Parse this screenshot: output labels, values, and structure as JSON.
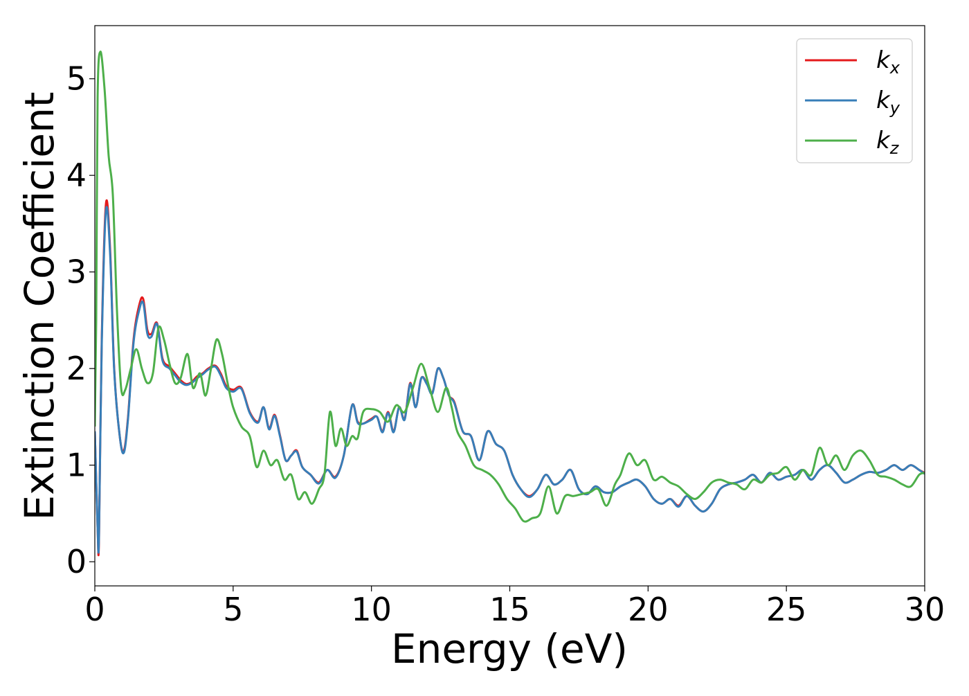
{
  "chart_data": {
    "type": "line",
    "xlabel": "Energy (eV)",
    "ylabel": "Extinction Coefficient",
    "xlim": [
      0,
      30
    ],
    "ylim": [
      -0.25,
      5.55
    ],
    "xticks": [
      0,
      5,
      10,
      15,
      20,
      25,
      30
    ],
    "yticks": [
      0,
      1,
      2,
      3,
      4,
      5
    ],
    "grid": false,
    "legend_position": "top-right",
    "series": [
      {
        "name": "kx",
        "base": "k",
        "sub": "x",
        "color": "#e41a1c",
        "x": [
          0,
          0.1,
          0.15,
          0.25,
          0.4,
          0.55,
          0.7,
          0.9,
          1.05,
          1.2,
          1.4,
          1.6,
          1.75,
          1.9,
          2.05,
          2.25,
          2.45,
          2.7,
          2.9,
          3.1,
          3.3,
          3.5,
          3.7,
          3.9,
          4.1,
          4.35,
          4.55,
          4.75,
          5,
          5.3,
          5.6,
          5.9,
          6.1,
          6.3,
          6.5,
          6.7,
          6.9,
          7.1,
          7.3,
          7.5,
          7.8,
          8.1,
          8.4,
          8.7,
          9.0,
          9.3,
          9.5,
          9.7,
          10.0,
          10.2,
          10.4,
          10.6,
          10.8,
          11.0,
          11.2,
          11.4,
          11.6,
          11.8,
          12.0,
          12.2,
          12.4,
          12.6,
          12.8,
          13.0,
          13.3,
          13.6,
          13.9,
          14.2,
          14.5,
          14.8,
          15.1,
          15.4,
          15.7,
          16.0,
          16.3,
          16.6,
          16.9,
          17.2,
          17.5,
          17.8,
          18.1,
          18.4,
          18.7,
          19.0,
          19.3,
          19.6,
          19.9,
          20.2,
          20.5,
          20.8,
          21.1,
          21.4,
          21.7,
          22.0,
          22.3,
          22.6,
          22.9,
          23.2,
          23.5,
          23.8,
          24.1,
          24.4,
          24.7,
          25.0,
          25.3,
          25.6,
          25.9,
          26.2,
          26.5,
          26.8,
          27.1,
          27.4,
          27.7,
          28.0,
          28.3,
          28.6,
          28.9,
          29.2,
          29.5,
          29.8,
          30.0
        ],
        "y": [
          1.35,
          0.35,
          0.22,
          2.3,
          3.7,
          3.25,
          2.0,
          1.3,
          1.15,
          1.5,
          2.3,
          2.65,
          2.72,
          2.4,
          2.36,
          2.47,
          2.1,
          2.02,
          1.95,
          1.88,
          1.84,
          1.86,
          1.92,
          1.95,
          2.0,
          2.03,
          1.95,
          1.82,
          1.78,
          1.8,
          1.55,
          1.45,
          1.6,
          1.38,
          1.52,
          1.3,
          1.05,
          1.1,
          1.15,
          0.98,
          0.9,
          0.82,
          0.95,
          0.88,
          1.1,
          1.62,
          1.45,
          1.43,
          1.48,
          1.5,
          1.35,
          1.55,
          1.35,
          1.6,
          1.48,
          1.85,
          1.6,
          1.9,
          1.85,
          1.75,
          2.0,
          1.9,
          1.72,
          1.65,
          1.35,
          1.3,
          1.05,
          1.35,
          1.22,
          1.15,
          0.9,
          0.75,
          0.68,
          0.75,
          0.9,
          0.8,
          0.85,
          0.95,
          0.75,
          0.7,
          0.78,
          0.72,
          0.72,
          0.78,
          0.82,
          0.85,
          0.78,
          0.65,
          0.6,
          0.65,
          0.58,
          0.68,
          0.58,
          0.52,
          0.6,
          0.75,
          0.8,
          0.82,
          0.85,
          0.9,
          0.82,
          0.92,
          0.85,
          0.88,
          0.9,
          0.95,
          0.85,
          0.95,
          1.0,
          0.92,
          0.82,
          0.85,
          0.9,
          0.93,
          0.92,
          0.95,
          1.0,
          0.95,
          1.0,
          0.95,
          0.92
        ]
      },
      {
        "name": "ky",
        "base": "k",
        "sub": "y",
        "color": "#377eb8",
        "x": [
          0,
          0.1,
          0.15,
          0.25,
          0.4,
          0.55,
          0.7,
          0.9,
          1.05,
          1.2,
          1.4,
          1.6,
          1.75,
          1.9,
          2.05,
          2.25,
          2.45,
          2.7,
          2.9,
          3.1,
          3.3,
          3.5,
          3.7,
          3.9,
          4.1,
          4.35,
          4.55,
          4.75,
          5,
          5.3,
          5.6,
          5.9,
          6.1,
          6.3,
          6.5,
          6.7,
          6.9,
          7.1,
          7.3,
          7.5,
          7.8,
          8.1,
          8.4,
          8.7,
          9.0,
          9.3,
          9.5,
          9.7,
          10.0,
          10.2,
          10.4,
          10.6,
          10.8,
          11.0,
          11.2,
          11.4,
          11.6,
          11.8,
          12.0,
          12.2,
          12.4,
          12.6,
          12.8,
          13.0,
          13.3,
          13.6,
          13.9,
          14.2,
          14.5,
          14.8,
          15.1,
          15.4,
          15.7,
          16.0,
          16.3,
          16.6,
          16.9,
          17.2,
          17.5,
          17.8,
          18.1,
          18.4,
          18.7,
          19.0,
          19.3,
          19.6,
          19.9,
          20.2,
          20.5,
          20.8,
          21.1,
          21.4,
          21.7,
          22.0,
          22.3,
          22.6,
          22.9,
          23.2,
          23.5,
          23.8,
          24.1,
          24.4,
          24.7,
          25.0,
          25.3,
          25.6,
          25.9,
          26.2,
          26.5,
          26.8,
          27.1,
          27.4,
          27.7,
          28.0,
          28.3,
          28.6,
          28.9,
          29.2,
          29.5,
          29.8,
          30.0
        ],
        "y": [
          1.35,
          0.35,
          0.25,
          2.25,
          3.63,
          3.2,
          1.98,
          1.3,
          1.13,
          1.48,
          2.27,
          2.6,
          2.68,
          2.36,
          2.33,
          2.46,
          2.08,
          2.0,
          1.93,
          1.86,
          1.83,
          1.85,
          1.9,
          1.94,
          1.99,
          2.02,
          1.93,
          1.8,
          1.76,
          1.79,
          1.54,
          1.44,
          1.6,
          1.37,
          1.51,
          1.29,
          1.05,
          1.1,
          1.14,
          0.98,
          0.9,
          0.81,
          0.95,
          0.87,
          1.1,
          1.62,
          1.44,
          1.43,
          1.47,
          1.5,
          1.34,
          1.54,
          1.34,
          1.6,
          1.47,
          1.84,
          1.6,
          1.9,
          1.84,
          1.74,
          2.0,
          1.9,
          1.72,
          1.64,
          1.35,
          1.3,
          1.05,
          1.35,
          1.22,
          1.15,
          0.9,
          0.75,
          0.67,
          0.75,
          0.9,
          0.8,
          0.85,
          0.95,
          0.75,
          0.7,
          0.78,
          0.72,
          0.72,
          0.78,
          0.82,
          0.85,
          0.78,
          0.65,
          0.6,
          0.65,
          0.57,
          0.68,
          0.58,
          0.52,
          0.6,
          0.75,
          0.8,
          0.82,
          0.85,
          0.9,
          0.82,
          0.92,
          0.85,
          0.88,
          0.9,
          0.95,
          0.85,
          0.95,
          1.0,
          0.92,
          0.82,
          0.85,
          0.9,
          0.93,
          0.92,
          0.95,
          1.0,
          0.95,
          1.0,
          0.95,
          0.91
        ]
      },
      {
        "name": "kz",
        "base": "k",
        "sub": "z",
        "color": "#4daf4a",
        "x": [
          0,
          0.05,
          0.1,
          0.2,
          0.35,
          0.5,
          0.65,
          0.8,
          0.95,
          1.1,
          1.3,
          1.5,
          1.7,
          1.9,
          2.1,
          2.3,
          2.5,
          2.7,
          2.9,
          3.1,
          3.35,
          3.55,
          3.8,
          4.0,
          4.2,
          4.4,
          4.6,
          4.8,
          5.0,
          5.3,
          5.6,
          5.85,
          6.1,
          6.35,
          6.6,
          6.85,
          7.1,
          7.35,
          7.6,
          7.85,
          8.1,
          8.3,
          8.5,
          8.7,
          8.9,
          9.1,
          9.3,
          9.5,
          9.7,
          10.0,
          10.3,
          10.6,
          10.9,
          11.2,
          11.5,
          11.8,
          12.1,
          12.4,
          12.7,
          12.9,
          13.1,
          13.4,
          13.7,
          14.0,
          14.3,
          14.6,
          14.9,
          15.2,
          15.5,
          15.8,
          16.1,
          16.4,
          16.7,
          17.0,
          17.3,
          17.6,
          17.9,
          18.2,
          18.5,
          18.8,
          19.0,
          19.3,
          19.6,
          19.9,
          20.2,
          20.5,
          20.8,
          21.1,
          21.4,
          21.7,
          22.0,
          22.3,
          22.6,
          22.9,
          23.2,
          23.5,
          23.8,
          24.1,
          24.4,
          24.7,
          25.0,
          25.3,
          25.6,
          25.9,
          26.2,
          26.5,
          26.8,
          27.1,
          27.4,
          27.7,
          28.0,
          28.3,
          28.6,
          28.9,
          29.2,
          29.5,
          29.8,
          30.0
        ],
        "y": [
          1.4,
          2.5,
          4.8,
          5.28,
          4.9,
          4.2,
          3.8,
          2.6,
          1.8,
          1.78,
          2.0,
          2.2,
          2.0,
          1.85,
          1.95,
          2.42,
          2.3,
          2.05,
          1.85,
          1.9,
          2.15,
          1.8,
          1.95,
          1.72,
          2.0,
          2.3,
          2.15,
          1.85,
          1.6,
          1.4,
          1.3,
          0.98,
          1.15,
          1.0,
          1.05,
          0.85,
          0.9,
          0.65,
          0.72,
          0.6,
          0.75,
          0.9,
          1.55,
          1.2,
          1.38,
          1.2,
          1.3,
          1.28,
          1.55,
          1.58,
          1.55,
          1.45,
          1.62,
          1.55,
          1.8,
          2.05,
          1.8,
          1.55,
          1.8,
          1.6,
          1.35,
          1.2,
          1.0,
          0.95,
          0.9,
          0.8,
          0.65,
          0.55,
          0.42,
          0.45,
          0.5,
          0.78,
          0.5,
          0.68,
          0.68,
          0.7,
          0.72,
          0.75,
          0.58,
          0.8,
          0.9,
          1.12,
          1.0,
          1.05,
          0.85,
          0.88,
          0.82,
          0.78,
          0.7,
          0.65,
          0.72,
          0.82,
          0.85,
          0.82,
          0.8,
          0.75,
          0.85,
          0.82,
          0.9,
          0.92,
          0.98,
          0.85,
          0.95,
          0.9,
          1.18,
          1.0,
          1.1,
          0.95,
          1.1,
          1.15,
          1.05,
          0.9,
          0.88,
          0.85,
          0.8,
          0.78,
          0.9,
          0.92
        ]
      }
    ]
  }
}
